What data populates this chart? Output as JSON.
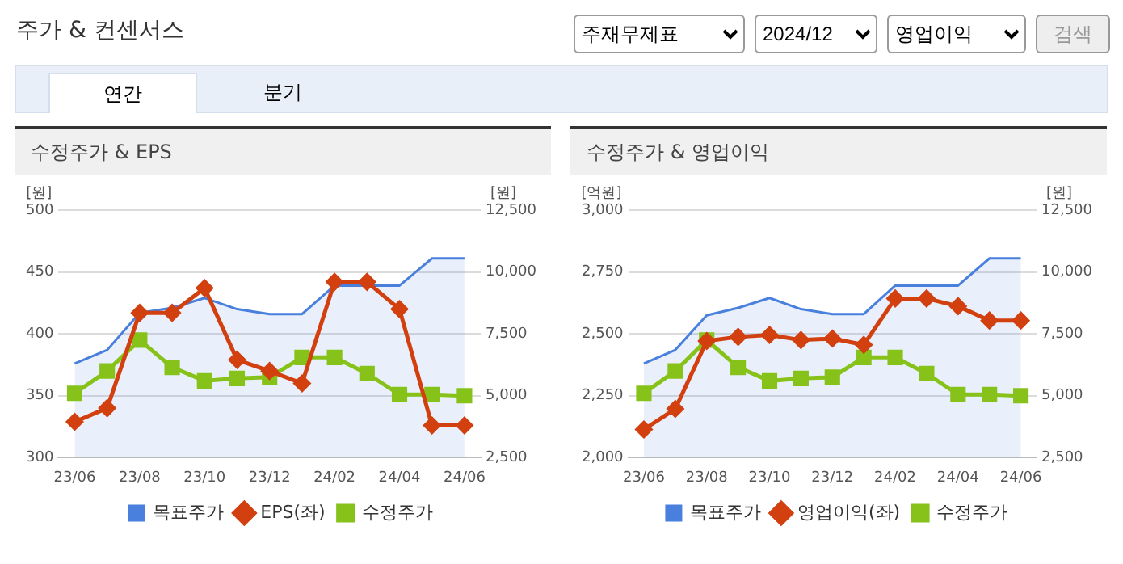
{
  "chart_data": [
    {
      "type": "other",
      "title": "주가 & 컨센서스",
      "annotations": [
        "주재무제표",
        "2024/12",
        "영업이익",
        "검색",
        "연간",
        "분기"
      ]
    },
    {
      "type": "line",
      "title": "수정주가 & EPS",
      "ylabel": "[원]",
      "y2label": "[원]",
      "categories": [
        "23/06",
        null,
        "23/08",
        null,
        "23/10",
        null,
        "23/12",
        null,
        "24/02",
        null,
        "24/04",
        null,
        "24/06"
      ],
      "series": [
        {
          "name": "목표주가",
          "type": "area",
          "axis": "y2",
          "color": "#4a80dd",
          "marker": "none",
          "values": [
            6300,
            6850,
            8350,
            8550,
            8950,
            8500,
            8300,
            8300,
            9450,
            9450,
            9450,
            10550,
            10550
          ]
        },
        {
          "name": "EPS(좌)",
          "type": "line",
          "color": "#d2400f",
          "marker": "diamond",
          "values": [
            329,
            340,
            417,
            417,
            437,
            379,
            370,
            360,
            442,
            442,
            420,
            326,
            326
          ]
        },
        {
          "name": "수정주가",
          "type": "line",
          "axis": "y2",
          "color": "#86c21a",
          "marker": "square",
          "values": [
            5100,
            6000,
            7250,
            6150,
            5600,
            5700,
            5750,
            6550,
            6550,
            5900,
            5050,
            5050,
            5000
          ]
        }
      ],
      "ylim": [
        300,
        500
      ],
      "yticks": [
        300,
        350,
        400,
        450,
        500
      ],
      "y2lim": [
        2500,
        12500
      ],
      "y2ticks": [
        {
          "value": 2500,
          "label": "2,500"
        },
        {
          "value": 5000,
          "label": "5,000"
        },
        {
          "value": 7500,
          "label": "7,500"
        },
        {
          "value": 10000,
          "label": "10,000"
        },
        {
          "value": 12500,
          "label": "12,500"
        }
      ],
      "grid": "y",
      "legend": "bottom"
    },
    {
      "type": "line",
      "title": "수정주가 & 영업이익",
      "ylabel": "[억원]",
      "y2label": "[원]",
      "categories": [
        "23/06",
        null,
        "23/08",
        null,
        "23/10",
        null,
        "23/12",
        null,
        "24/02",
        null,
        "24/04",
        null,
        "24/06"
      ],
      "series": [
        {
          "name": "목표주가",
          "type": "area",
          "axis": "y2",
          "color": "#4a80dd",
          "marker": "none",
          "values": [
            6300,
            6850,
            8250,
            8550,
            8950,
            8500,
            8300,
            8300,
            9450,
            9450,
            9450,
            10550,
            10550
          ]
        },
        {
          "name": "영업이익(좌)",
          "type": "line",
          "color": "#d2400f",
          "marker": "diamond",
          "values": [
            2114,
            2197,
            2471,
            2488,
            2496,
            2475,
            2481,
            2456,
            2643,
            2643,
            2612,
            2554,
            2554
          ]
        },
        {
          "name": "수정주가",
          "type": "line",
          "axis": "y2",
          "color": "#86c21a",
          "marker": "square",
          "values": [
            5100,
            6000,
            7250,
            6150,
            5600,
            5700,
            5750,
            6550,
            6550,
            5900,
            5050,
            5050,
            5000
          ]
        }
      ],
      "ylim": [
        2000,
        3000
      ],
      "yticks": [
        {
          "value": 2000,
          "label": "2,000"
        },
        {
          "value": 2250,
          "label": "2,250"
        },
        {
          "value": 2500,
          "label": "2,500"
        },
        {
          "value": 2750,
          "label": "2,750"
        },
        {
          "value": 3000,
          "label": "3,000"
        }
      ],
      "y2lim": [
        2500,
        12500
      ],
      "y2ticks": [
        {
          "value": 2500,
          "label": "2,500"
        },
        {
          "value": 5000,
          "label": "5,000"
        },
        {
          "value": 7500,
          "label": "7,500"
        },
        {
          "value": 10000,
          "label": "10,000"
        },
        {
          "value": 12500,
          "label": "12,500"
        }
      ],
      "grid": "y",
      "legend": "bottom"
    }
  ]
}
